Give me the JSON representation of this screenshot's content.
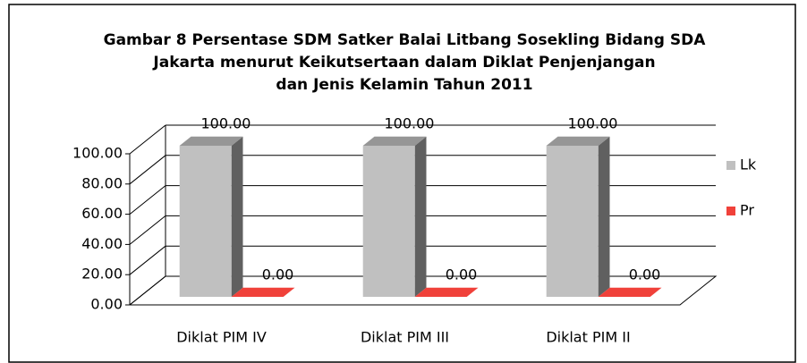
{
  "chart_data": {
    "type": "bar3d",
    "title": [
      "Gambar 8 Persentase SDM Satker Balai Litbang Sosekling Bidang SDA",
      "Jakarta menurut Keikutsertaan dalam Diklat Penjenjangan",
      "dan Jenis Kelamin Tahun 2011"
    ],
    "categories": [
      "Diklat PIM IV",
      "Diklat PIM III",
      "Diklat PIM II"
    ],
    "series": [
      {
        "name": "Lk",
        "color": "#c0c0c0",
        "values": [
          100,
          100,
          100
        ],
        "value_labels": [
          "100.00",
          "100.00",
          "100.00"
        ]
      },
      {
        "name": "Pr",
        "color": "#f0413a",
        "values": [
          0,
          0,
          0
        ],
        "value_labels": [
          "0.00",
          "0.00",
          "0.00"
        ]
      }
    ],
    "ylim": [
      0,
      100
    ],
    "yticks": [
      {
        "value": 0,
        "label": "0.00"
      },
      {
        "value": 20,
        "label": "20.00"
      },
      {
        "value": 40,
        "label": "40.00"
      },
      {
        "value": 60,
        "label": "60.00"
      },
      {
        "value": 80,
        "label": "80.00"
      },
      {
        "value": 100,
        "label": "100.00"
      }
    ],
    "grid": true,
    "legend": "right"
  }
}
